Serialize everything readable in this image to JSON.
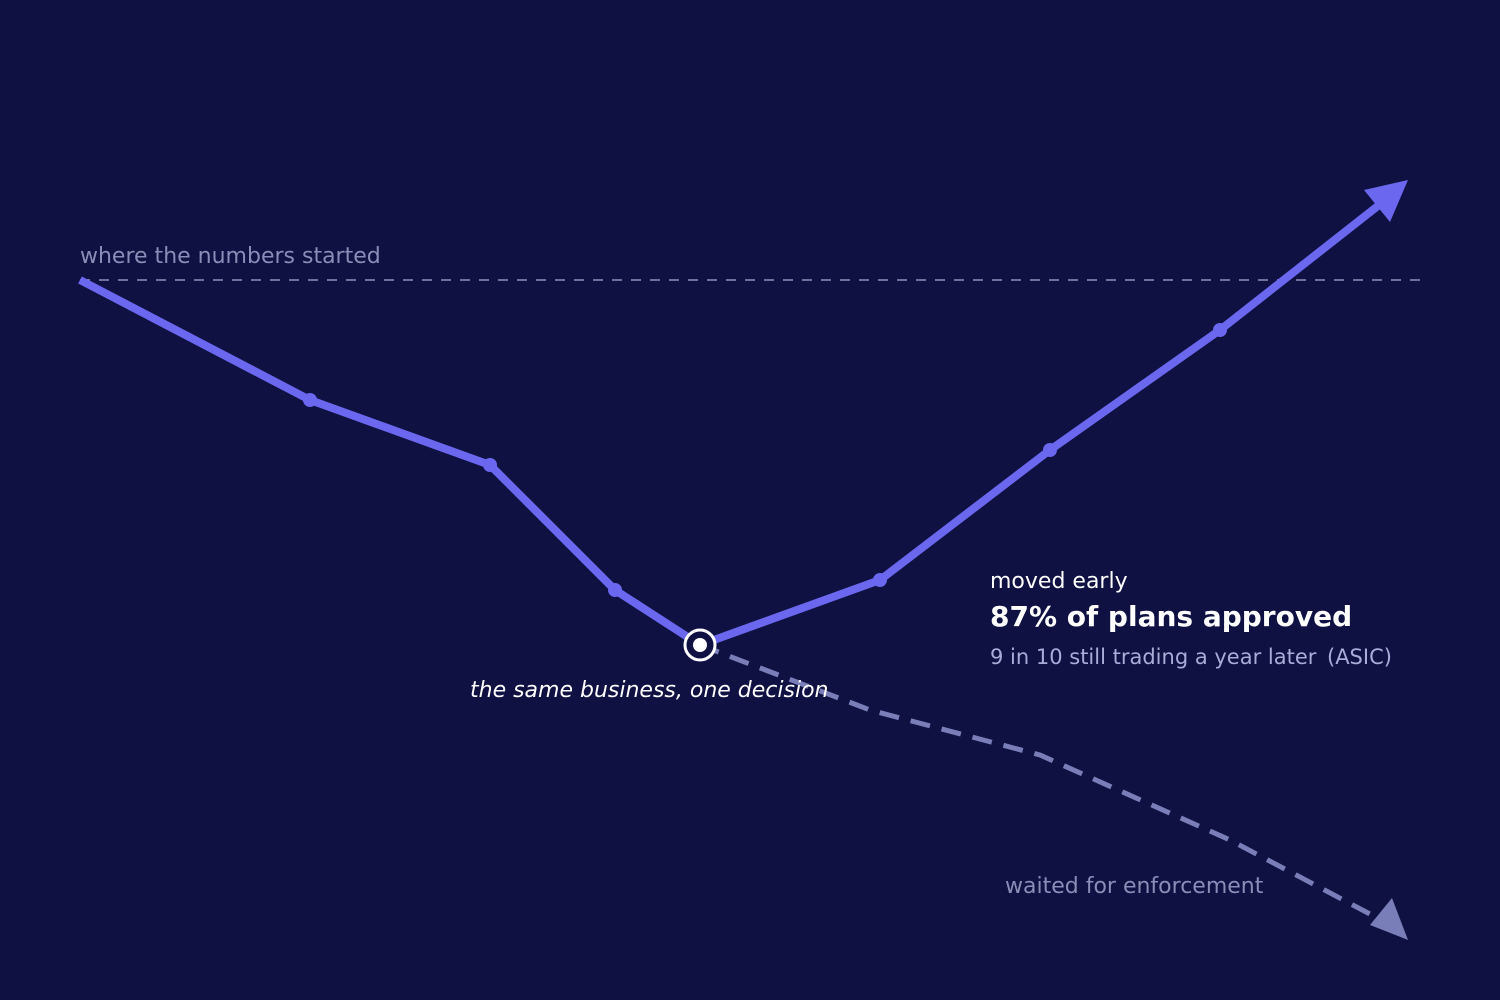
{
  "baseline_label": "where the numbers started",
  "pivot_label": "the same business, one decision",
  "early": {
    "label": "moved early",
    "headline": "87% of plans approved",
    "detail": "9 in 10 still trading a year later",
    "source": "(ASIC)"
  },
  "late": {
    "label": "waited for enforcement"
  }
}
